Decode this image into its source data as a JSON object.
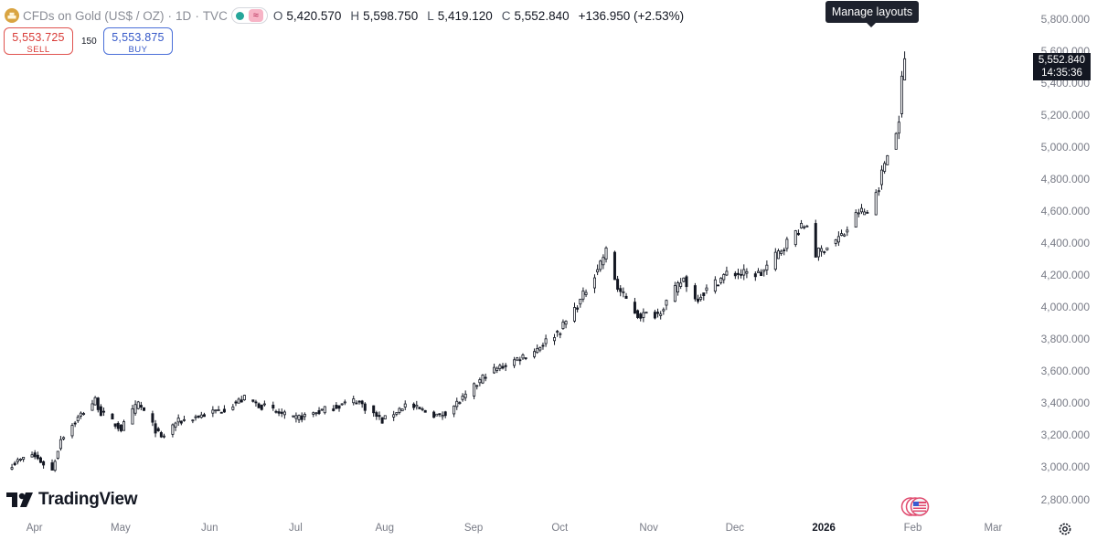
{
  "header": {
    "symbol_name": "CFDs on Gold (US$ / OZ)",
    "interval": "1D",
    "exchange": "TVC",
    "separator": "·",
    "ohlc": {
      "o_label": "O",
      "o_value": "5,420.570",
      "h_label": "H",
      "h_value": "5,598.750",
      "l_label": "L",
      "l_value": "5,419.120",
      "c_label": "C",
      "c_value": "5,552.840",
      "change": "+136.950 (+2.53%)"
    }
  },
  "trade": {
    "sell_price": "5,553.725",
    "sell_label": "SELL",
    "spread": "150",
    "buy_price": "5,553.875",
    "buy_label": "BUY"
  },
  "tooltip": {
    "text": "Manage layouts"
  },
  "last_price": {
    "value": "5,552.840",
    "countdown": "14:35:36"
  },
  "branding": {
    "logo_text": "TradingView"
  },
  "colors": {
    "candle": "#131722",
    "sell": "#d83a36",
    "buy": "#3558c8",
    "axis_text": "#787b86"
  },
  "chart_data": {
    "type": "candlestick",
    "y_ticks": [
      "5,800.000",
      "5,600.000",
      "5,400.000",
      "5,200.000",
      "5,000.000",
      "4,800.000",
      "4,600.000",
      "4,400.000",
      "4,200.000",
      "4,000.000",
      "3,800.000",
      "3,600.000",
      "3,400.000",
      "3,200.000",
      "3,000.000",
      "2,800.000"
    ],
    "ylim": [
      2750,
      5850
    ],
    "x_ticks": [
      {
        "label": "Apr",
        "bold": false
      },
      {
        "label": "May",
        "bold": false
      },
      {
        "label": "Jun",
        "bold": false
      },
      {
        "label": "Jul",
        "bold": false
      },
      {
        "label": "Aug",
        "bold": false
      },
      {
        "label": "Sep",
        "bold": false
      },
      {
        "label": "Oct",
        "bold": false
      },
      {
        "label": "Nov",
        "bold": false
      },
      {
        "label": "Dec",
        "bold": false
      },
      {
        "label": "2026",
        "bold": true
      },
      {
        "label": "Feb",
        "bold": false
      },
      {
        "label": "Mar",
        "bold": false
      }
    ],
    "candle_anchors": [
      [
        "2025-03-24",
        3020
      ],
      [
        "2025-03-31",
        3080
      ],
      [
        "2025-04-07",
        2980
      ],
      [
        "2025-04-10",
        3180
      ],
      [
        "2025-04-17",
        3330
      ],
      [
        "2025-04-22",
        3420
      ],
      [
        "2025-04-24",
        3340
      ],
      [
        "2025-05-01",
        3240
      ],
      [
        "2025-05-07",
        3400
      ],
      [
        "2025-05-15",
        3180
      ],
      [
        "2025-05-20",
        3280
      ],
      [
        "2025-06-05",
        3360
      ],
      [
        "2025-06-13",
        3430
      ],
      [
        "2025-06-30",
        3300
      ],
      [
        "2025-07-22",
        3420
      ],
      [
        "2025-07-31",
        3290
      ],
      [
        "2025-08-08",
        3390
      ],
      [
        "2025-08-20",
        3320
      ],
      [
        "2025-08-29",
        3440
      ],
      [
        "2025-09-05",
        3580
      ],
      [
        "2025-09-22",
        3730
      ],
      [
        "2025-10-01",
        3860
      ],
      [
        "2025-10-08",
        4040
      ],
      [
        "2025-10-17",
        4350
      ],
      [
        "2025-10-21",
        4120
      ],
      [
        "2025-10-28",
        3950
      ],
      [
        "2025-11-04",
        3960
      ],
      [
        "2025-11-13",
        4180
      ],
      [
        "2025-11-17",
        4050
      ],
      [
        "2025-11-28",
        4210
      ],
      [
        "2025-12-10",
        4210
      ],
      [
        "2025-12-22",
        4470
      ],
      [
        "2025-12-26",
        4520
      ],
      [
        "2025-12-29",
        4330
      ],
      [
        "2026-01-08",
        4460
      ],
      [
        "2026-01-13",
        4600
      ],
      [
        "2026-01-16",
        4590
      ],
      [
        "2026-01-20",
        4760
      ],
      [
        "2026-01-23",
        4980
      ],
      [
        "2026-01-26",
        5080
      ],
      [
        "2026-01-27",
        5190
      ],
      [
        "2026-01-28",
        5420
      ],
      [
        "2026-01-29",
        5552.84
      ]
    ]
  }
}
